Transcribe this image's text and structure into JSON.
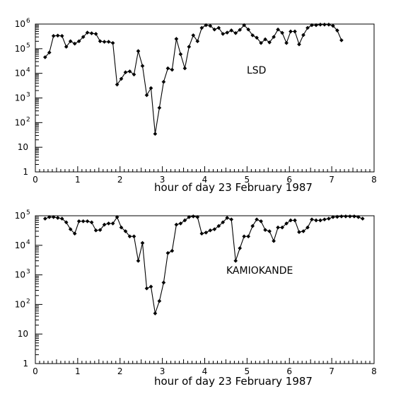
{
  "chart_data": [
    {
      "type": "line",
      "title": "",
      "xlabel": "hour of day 23 February 1987",
      "ylabel": "",
      "xlim": [
        0,
        8
      ],
      "ylim": [
        1,
        1000000
      ],
      "yscale": "log",
      "xticks": [
        "0",
        "1",
        "2",
        "3",
        "4",
        "5",
        "6",
        "7",
        "8"
      ],
      "yticks": [
        {
          "base": "1",
          "exp": ""
        },
        {
          "base": "10",
          "exp": ""
        },
        {
          "base": "10",
          "exp": "2"
        },
        {
          "base": "10",
          "exp": "3"
        },
        {
          "base": "10",
          "exp": "4"
        },
        {
          "base": "10",
          "exp": "5"
        },
        {
          "base": "10",
          "exp": "6"
        }
      ],
      "annotation": "LSD",
      "grid": false,
      "series": [
        {
          "x": [
            0.23,
            0.33,
            0.43,
            0.53,
            0.63,
            0.73,
            0.83,
            0.93,
            1.03,
            1.13,
            1.23,
            1.33,
            1.43,
            1.53,
            1.63,
            1.73,
            1.83,
            1.93,
            2.03,
            2.13,
            2.23,
            2.33,
            2.43,
            2.53,
            2.63,
            2.73,
            2.83,
            2.93,
            3.03,
            3.13,
            3.23,
            3.33,
            3.43,
            3.53,
            3.63,
            3.73,
            3.83,
            3.93,
            4.03,
            4.13,
            4.23,
            4.33,
            4.43,
            4.53,
            4.63,
            4.73,
            4.83,
            4.93,
            5.03,
            5.13,
            5.23,
            5.33,
            5.43,
            5.53,
            5.63,
            5.73,
            5.83,
            5.93,
            6.03,
            6.13,
            6.23,
            6.33,
            6.43,
            6.53,
            6.63,
            6.73,
            6.83,
            6.93,
            7.03,
            7.13,
            7.23
          ],
          "y": [
            45000,
            70000,
            330000,
            340000,
            330000,
            120000,
            200000,
            160000,
            200000,
            300000,
            450000,
            420000,
            400000,
            200000,
            190000,
            190000,
            170000,
            3500,
            6000,
            11000,
            12000,
            9000,
            80000,
            20000,
            1300,
            2500,
            35,
            400,
            4500,
            16000,
            14000,
            250000,
            60000,
            16000,
            120000,
            350000,
            200000,
            700000,
            900000,
            850000,
            600000,
            700000,
            400000,
            450000,
            550000,
            430000,
            580000,
            900000,
            600000,
            350000,
            280000,
            170000,
            240000,
            180000,
            300000,
            600000,
            440000,
            170000,
            500000,
            500000,
            150000,
            360000,
            700000,
            900000,
            900000,
            950000,
            950000,
            950000,
            850000,
            550000,
            220000
          ]
        }
      ]
    },
    {
      "type": "line",
      "title": "",
      "xlabel": "hour of day 23 February 1987",
      "ylabel": "",
      "xlim": [
        0,
        8
      ],
      "ylim": [
        1,
        100000
      ],
      "yscale": "log",
      "xticks": [
        "0",
        "1",
        "2",
        "3",
        "4",
        "5",
        "6",
        "7",
        "8"
      ],
      "yticks": [
        {
          "base": "1",
          "exp": ""
        },
        {
          "base": "10",
          "exp": ""
        },
        {
          "base": "10",
          "exp": "2"
        },
        {
          "base": "10",
          "exp": "3"
        },
        {
          "base": "10",
          "exp": "4"
        },
        {
          "base": "10",
          "exp": "5"
        }
      ],
      "annotation": "KAMIOKANDE",
      "grid": false,
      "series": [
        {
          "x": [
            0.23,
            0.33,
            0.43,
            0.53,
            0.63,
            0.73,
            0.83,
            0.93,
            1.03,
            1.13,
            1.23,
            1.33,
            1.43,
            1.53,
            1.63,
            1.73,
            1.83,
            1.93,
            2.03,
            2.13,
            2.23,
            2.33,
            2.43,
            2.53,
            2.63,
            2.73,
            2.83,
            2.93,
            3.03,
            3.13,
            3.23,
            3.33,
            3.43,
            3.53,
            3.63,
            3.73,
            3.83,
            3.93,
            4.03,
            4.13,
            4.23,
            4.33,
            4.43,
            4.53,
            4.63,
            4.73,
            4.83,
            4.93,
            5.03,
            5.13,
            5.23,
            5.33,
            5.43,
            5.53,
            5.63,
            5.73,
            5.83,
            5.93,
            6.03,
            6.13,
            6.23,
            6.33,
            6.43,
            6.53,
            6.63,
            6.73,
            6.83,
            6.93,
            7.03,
            7.13,
            7.23,
            7.33,
            7.43,
            7.53,
            7.63,
            7.73
          ],
          "y": [
            80000,
            90000,
            90000,
            85000,
            80000,
            60000,
            35000,
            25000,
            65000,
            65000,
            65000,
            60000,
            32000,
            33000,
            50000,
            55000,
            55000,
            90000,
            40000,
            30000,
            20000,
            20000,
            3000,
            12000,
            350,
            400,
            50,
            130,
            550,
            5500,
            6500,
            50000,
            55000,
            70000,
            90000,
            95000,
            90000,
            25000,
            27000,
            32000,
            35000,
            45000,
            60000,
            85000,
            75000,
            3000,
            8000,
            20000,
            20000,
            45000,
            75000,
            65000,
            33000,
            30000,
            14000,
            40000,
            40000,
            55000,
            70000,
            70000,
            28000,
            30000,
            40000,
            75000,
            70000,
            70000,
            75000,
            80000,
            90000,
            92000,
            95000,
            95000,
            95000,
            95000,
            90000,
            80000
          ]
        }
      ]
    }
  ]
}
